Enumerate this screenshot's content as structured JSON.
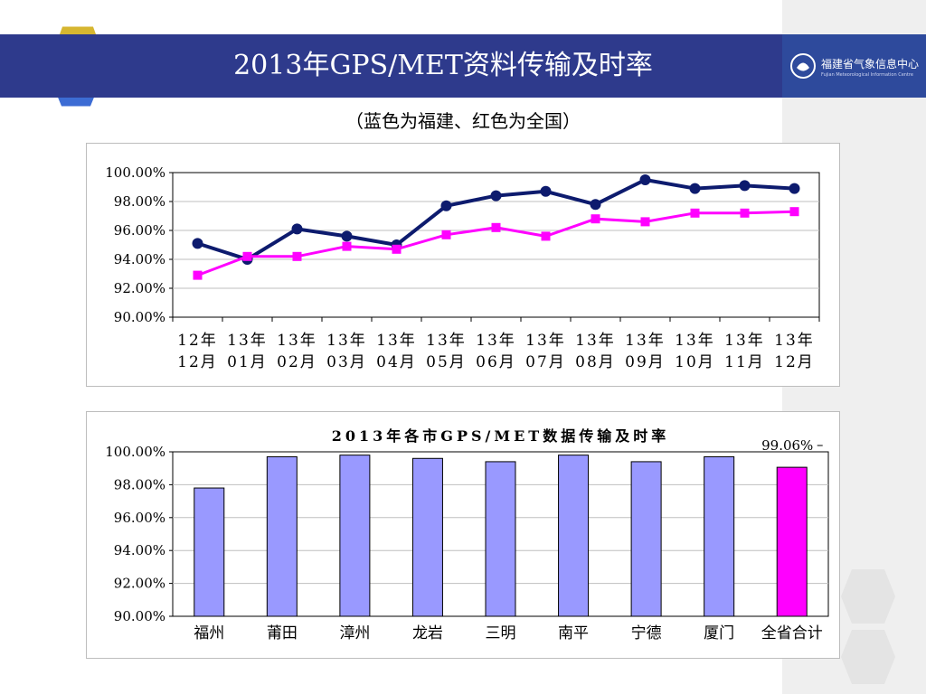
{
  "header": {
    "title": "2013年GPS/MET资料传输及时率"
  },
  "logo": {
    "name_cn": "福建省气象信息中心",
    "name_en": "Fujian Meteorological Information Centre"
  },
  "subtitle": "（蓝色为福建、红色为全国）",
  "colors": {
    "header_bg": "#2e3a8c",
    "fujian_line": "#0d1b6e",
    "national_line": "#ff00ff",
    "bar_city": "#9999ff",
    "bar_total": "#ff00ff"
  },
  "chart_data": [
    {
      "type": "line",
      "title": "",
      "categories": [
        [
          "12年",
          "12月"
        ],
        [
          "13年",
          "01月"
        ],
        [
          "13年",
          "02月"
        ],
        [
          "13年",
          "03月"
        ],
        [
          "13年",
          "04月"
        ],
        [
          "13年",
          "05月"
        ],
        [
          "13年",
          "06月"
        ],
        [
          "13年",
          "07月"
        ],
        [
          "13年",
          "08月"
        ],
        [
          "13年",
          "09月"
        ],
        [
          "13年",
          "10月"
        ],
        [
          "13年",
          "11月"
        ],
        [
          "13年",
          "12月"
        ]
      ],
      "ylim": [
        90,
        100
      ],
      "yticks": [
        "100.00%",
        "98.00%",
        "96.00%",
        "94.00%",
        "92.00%",
        "90.00%"
      ],
      "grid": true,
      "series": [
        {
          "color": "#0d1b6e",
          "marker": "circle",
          "values": [
            95.1,
            94.0,
            96.1,
            95.6,
            95.0,
            97.7,
            98.4,
            98.7,
            97.8,
            99.5,
            98.9,
            99.1,
            98.9
          ]
        },
        {
          "color": "#ff00ff",
          "marker": "square",
          "values": [
            92.9,
            94.2,
            94.2,
            94.9,
            94.7,
            95.7,
            96.2,
            95.6,
            96.8,
            96.6,
            97.2,
            97.2,
            97.3
          ]
        }
      ]
    },
    {
      "type": "bar",
      "title": "2013年各市GPS/MET数据传输及时率",
      "categories": [
        "福州",
        "莆田",
        "漳州",
        "龙岩",
        "三明",
        "南平",
        "宁德",
        "厦门",
        "全省合计"
      ],
      "values": [
        97.8,
        99.7,
        99.8,
        99.6,
        99.4,
        99.8,
        99.4,
        99.7,
        99.06
      ],
      "colors": [
        "#9999ff",
        "#9999ff",
        "#9999ff",
        "#9999ff",
        "#9999ff",
        "#9999ff",
        "#9999ff",
        "#9999ff",
        "#ff00ff"
      ],
      "data_labels": [
        "",
        "",
        "",
        "",
        "",
        "",
        "",
        "",
        "99.06%"
      ],
      "ylim": [
        90,
        100
      ],
      "yticks": [
        "100.00%",
        "98.00%",
        "96.00%",
        "94.00%",
        "92.00%",
        "90.00%"
      ],
      "grid": true
    }
  ]
}
